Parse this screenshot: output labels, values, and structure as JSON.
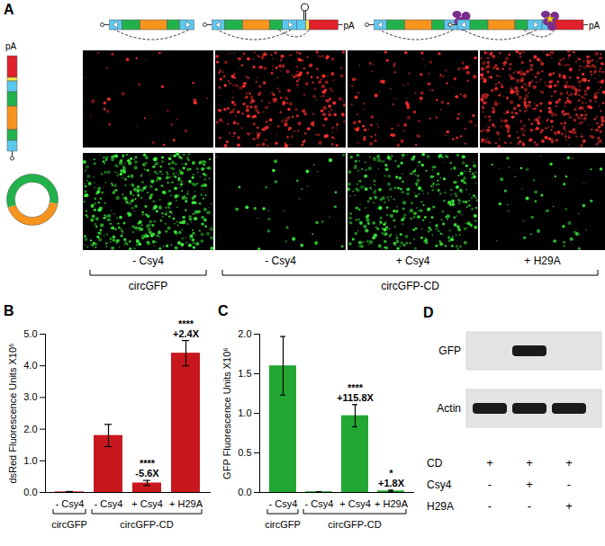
{
  "chart_data": [
    {
      "type": "bar",
      "title": "B",
      "ylabel": "dsRed Fluorescence Units X10⁶",
      "categories": [
        "- Csy4",
        "- Csy4",
        "+ Csy4",
        "+ H29A"
      ],
      "group_labels": [
        "circGFP",
        "circGFP-CD",
        "circGFP-CD",
        "circGFP-CD"
      ],
      "values": [
        0.02,
        1.8,
        0.3,
        4.4
      ],
      "errors": [
        0.01,
        0.35,
        0.08,
        0.4
      ],
      "annotations": [
        null,
        null,
        [
          "****",
          "-5.6X"
        ],
        [
          "****",
          "+2.4X"
        ]
      ],
      "color": "#c8181e",
      "ylim": [
        0,
        5
      ],
      "yticks": [
        {
          "value": 0,
          "label": "0.0"
        },
        {
          "value": 1,
          "label": "1.0"
        },
        {
          "value": 2,
          "label": "2.0"
        },
        {
          "value": 3,
          "label": "3.0"
        },
        {
          "value": 4,
          "label": "4.0"
        },
        {
          "value": 5,
          "label": "5.0"
        }
      ]
    },
    {
      "type": "bar",
      "title": "C",
      "ylabel": "GFP Fluorescence Units X10⁶",
      "categories": [
        "- Csy4",
        "- Csy4",
        "+ Csy4",
        "+ H29A"
      ],
      "group_labels": [
        "circGFP",
        "circGFP-CD",
        "circGFP-CD",
        "circGFP-CD"
      ],
      "values": [
        1.6,
        0.01,
        0.97,
        0.02
      ],
      "errors": [
        0.37,
        0,
        0.14,
        0.01
      ],
      "annotations": [
        null,
        null,
        [
          "****",
          "+115.8X"
        ],
        [
          "*",
          "+1.8X"
        ]
      ],
      "color": "#22a832",
      "ylim": [
        0,
        2
      ],
      "yticks": [
        {
          "value": 0,
          "label": "0.0"
        },
        {
          "value": 0.5,
          "label": "0.5"
        },
        {
          "value": 1,
          "label": "1.0"
        },
        {
          "value": 1.5,
          "label": "1.5"
        },
        {
          "value": 2,
          "label": "2.0"
        }
      ]
    }
  ],
  "panel_a": {
    "title": "A",
    "conditions": [
      "- Csy4",
      "- Csy4",
      "+ Csy4",
      "+ H29A"
    ],
    "group_labels": [
      "circGFP",
      "circGFP-CD",
      "circGFP-CD",
      "circGFP-CD"
    ],
    "polyA_label": "pA",
    "constructs": [
      {
        "hairpin": false,
        "protein": false,
        "mutant": false,
        "reporter": false
      },
      {
        "hairpin": true,
        "protein": false,
        "mutant": false,
        "reporter": true
      },
      {
        "hairpin": false,
        "protein": true,
        "mutant": false,
        "reporter": false
      },
      {
        "hairpin": false,
        "protein": true,
        "mutant": true,
        "reporter": true
      }
    ]
  },
  "blot": {
    "title": "D",
    "bands": [
      {
        "label": "GFP",
        "lanes": [
          false,
          true,
          false
        ]
      },
      {
        "label": "Actin",
        "lanes": [
          true,
          true,
          true
        ]
      }
    ],
    "conditions": [
      {
        "label": "CD",
        "values": [
          "+",
          "+",
          "+"
        ]
      },
      {
        "label": "Csy4",
        "values": [
          "-",
          "+",
          "-"
        ]
      },
      {
        "label": "H29A",
        "values": [
          "-",
          "-",
          "+"
        ]
      }
    ]
  }
}
